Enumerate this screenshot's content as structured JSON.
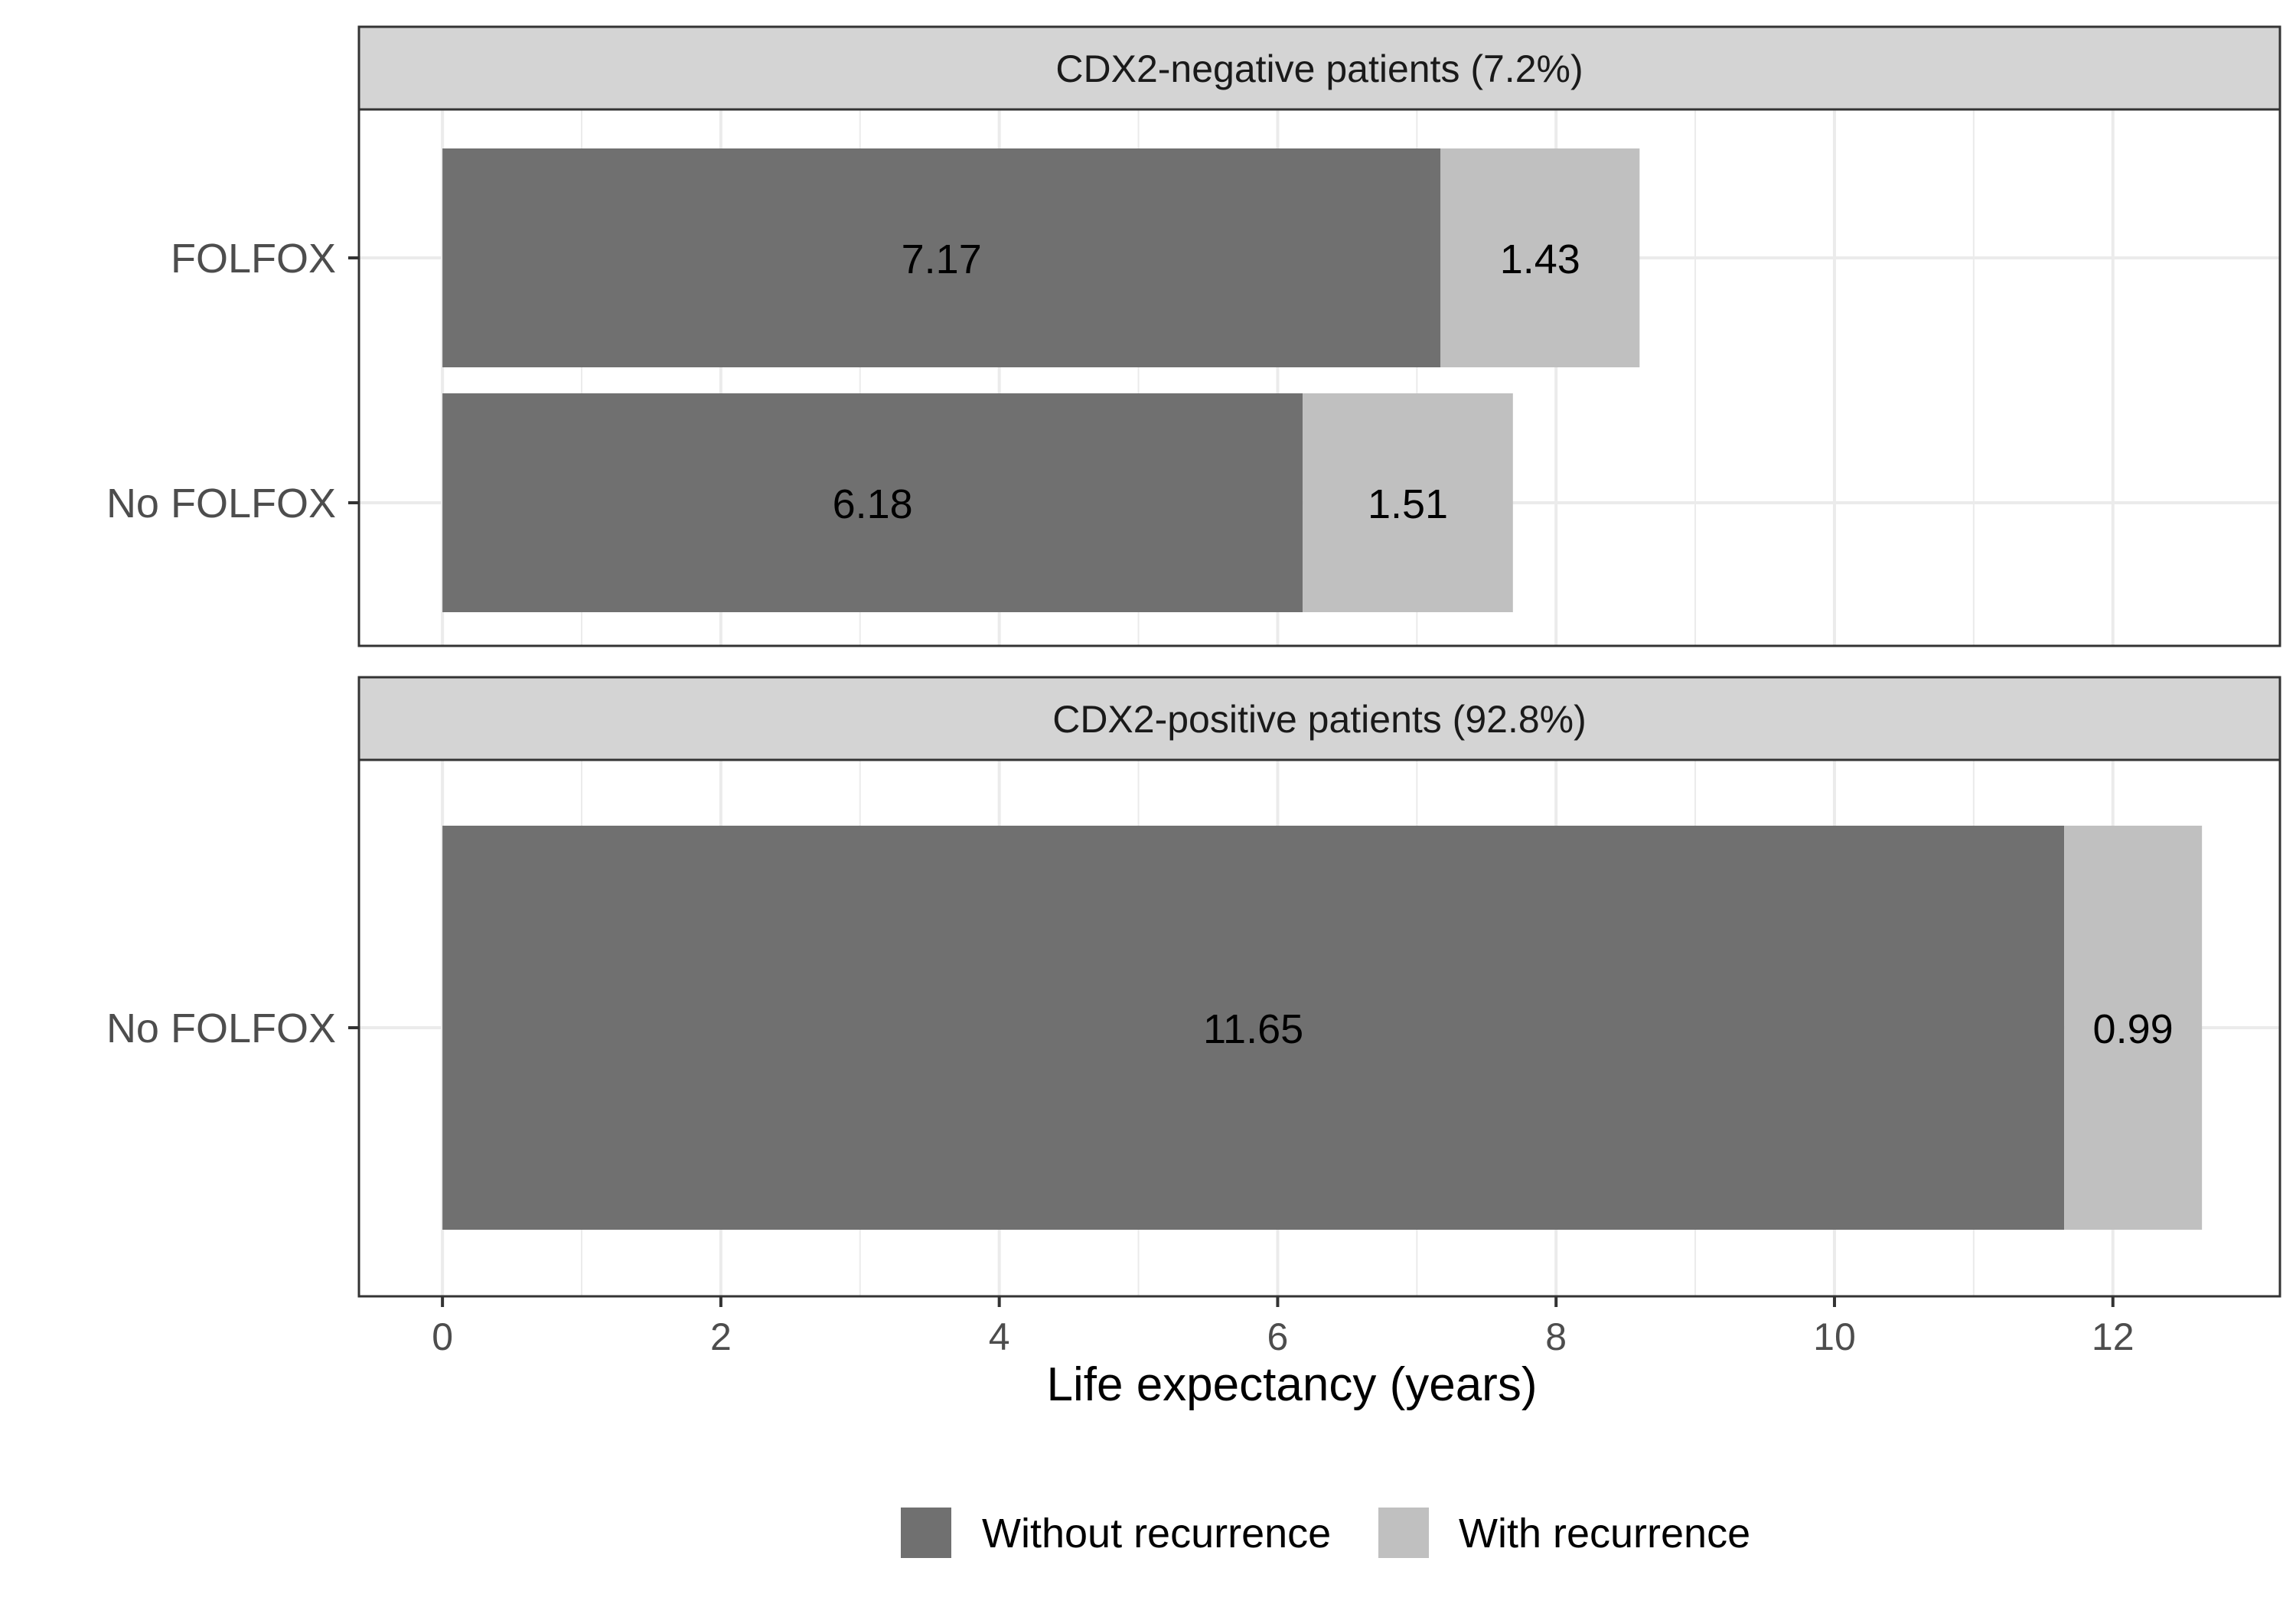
{
  "chart_data": {
    "type": "bar",
    "orientation": "horizontal",
    "stacked": true,
    "xlabel": "Life expectancy (years)",
    "xlim": [
      -0.6,
      13.2
    ],
    "xticks": [
      0,
      2,
      4,
      6,
      8,
      10,
      12
    ],
    "grid": true,
    "legend_position": "bottom",
    "colors": {
      "without": "#707070",
      "with": "#c0c0c0",
      "strip": "#d4d4d4",
      "grid": "#ebebeb",
      "border": "#333333",
      "tick_text": "#4d4d4d"
    },
    "legend": [
      {
        "key": "without",
        "label": "Without recurrence"
      },
      {
        "key": "with",
        "label": "With recurrence"
      }
    ],
    "panels": [
      {
        "title": "CDX2-negative patients (7.2%)",
        "rows": [
          {
            "label": "FOLFOX",
            "without": 7.17,
            "with": 1.43,
            "without_label": "7.17",
            "with_label": "1.43"
          },
          {
            "label": "No FOLFOX",
            "without": 6.18,
            "with": 1.51,
            "without_label": "6.18",
            "with_label": "1.51"
          }
        ]
      },
      {
        "title": "CDX2-positive patients (92.8%)",
        "rows": [
          {
            "label": "No FOLFOX",
            "without": 11.65,
            "with": 0.99,
            "without_label": "11.65",
            "with_label": "0.99"
          }
        ]
      }
    ]
  }
}
